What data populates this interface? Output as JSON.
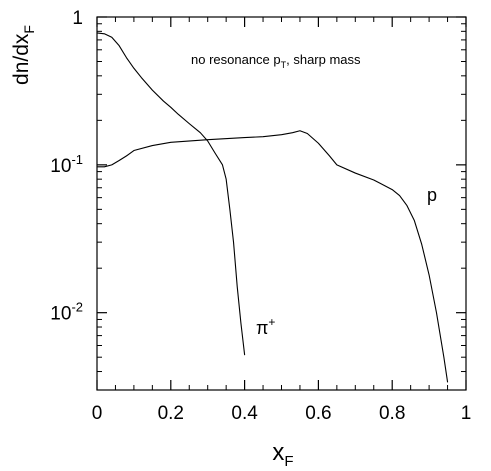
{
  "chart_data": {
    "type": "line",
    "title": "",
    "annotation": {
      "main": "no resonance p",
      "sub": "T",
      "tail": ", sharp mass"
    },
    "xlabel": {
      "main": "x",
      "sub": "F"
    },
    "ylabel": {
      "main": "dn/dx",
      "sub": "F"
    },
    "xlim": [
      0,
      1
    ],
    "ylim": [
      0.003,
      1
    ],
    "y_scale": "log",
    "grid": false,
    "x_ticks": [
      {
        "value": 0,
        "label": "0"
      },
      {
        "value": 0.2,
        "label": "0.2"
      },
      {
        "value": 0.4,
        "label": "0.4"
      },
      {
        "value": 0.6,
        "label": "0.6"
      },
      {
        "value": 0.8,
        "label": "0.8"
      },
      {
        "value": 1,
        "label": "1"
      }
    ],
    "y_ticks": [
      {
        "value": 1,
        "base": "1",
        "exp": ""
      },
      {
        "value": 0.1,
        "base": "10",
        "exp": "-1"
      },
      {
        "value": 0.01,
        "base": "10",
        "exp": "-2"
      }
    ],
    "series": [
      {
        "name": "π⁺",
        "label_main": "π",
        "label_sup": "+",
        "color": "#000000",
        "x": [
          0,
          0.02,
          0.04,
          0.06,
          0.08,
          0.1,
          0.12,
          0.15,
          0.18,
          0.2,
          0.22,
          0.25,
          0.28,
          0.3,
          0.32,
          0.34,
          0.35,
          0.36,
          0.37,
          0.38,
          0.39,
          0.4
        ],
        "y": [
          0.78,
          0.77,
          0.73,
          0.64,
          0.53,
          0.45,
          0.39,
          0.32,
          0.27,
          0.245,
          0.22,
          0.19,
          0.165,
          0.145,
          0.12,
          0.1,
          0.08,
          0.05,
          0.03,
          0.015,
          0.0085,
          0.0052
        ]
      },
      {
        "name": "p",
        "label_main": "p",
        "label_sup": "",
        "color": "#000000",
        "x": [
          0,
          0.02,
          0.04,
          0.06,
          0.08,
          0.1,
          0.15,
          0.2,
          0.3,
          0.4,
          0.45,
          0.5,
          0.53,
          0.55,
          0.57,
          0.6,
          0.63,
          0.65,
          0.7,
          0.75,
          0.8,
          0.82,
          0.84,
          0.86,
          0.88,
          0.9,
          0.92,
          0.94,
          0.95
        ],
        "y": [
          0.097,
          0.097,
          0.1,
          0.107,
          0.115,
          0.125,
          0.135,
          0.142,
          0.148,
          0.153,
          0.155,
          0.16,
          0.165,
          0.17,
          0.163,
          0.14,
          0.115,
          0.1,
          0.088,
          0.079,
          0.068,
          0.062,
          0.053,
          0.042,
          0.029,
          0.018,
          0.01,
          0.005,
          0.0034
        ]
      }
    ]
  }
}
